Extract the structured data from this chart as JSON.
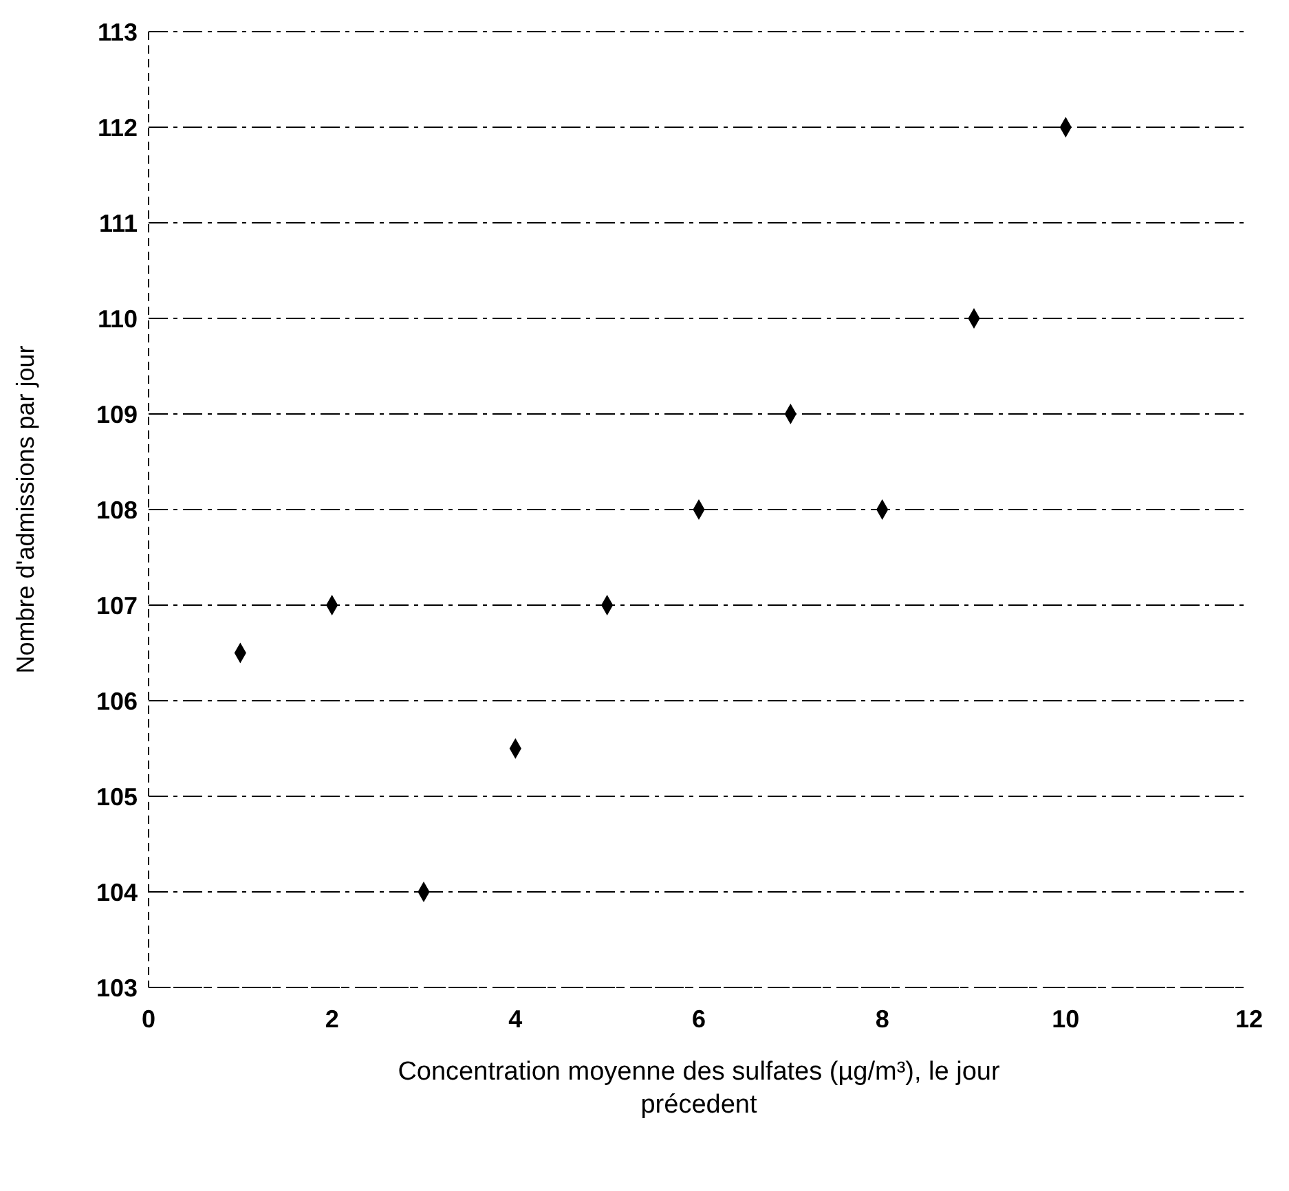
{
  "chart_data": {
    "type": "scatter",
    "xlabel": "Concentration moyenne des sulfates (µg/m³), le jour précedent",
    "ylabel": "Nombre d'admissions par jour",
    "x": [
      1,
      2,
      3,
      4,
      5,
      6,
      7,
      8,
      9,
      10
    ],
    "series": [
      {
        "color": "#000000",
        "values": [
          106.5,
          107,
          104,
          105.5,
          107,
          108,
          109,
          108,
          110,
          112
        ]
      }
    ],
    "xlim": [
      0,
      12
    ],
    "xticks": [
      0,
      2,
      4,
      6,
      8,
      10,
      12
    ],
    "ylim": [
      103,
      113
    ],
    "yticks": [
      103,
      104,
      105,
      106,
      107,
      108,
      109,
      110,
      111,
      112,
      113
    ],
    "grid": "y",
    "marker": "diamond",
    "legend": false
  }
}
